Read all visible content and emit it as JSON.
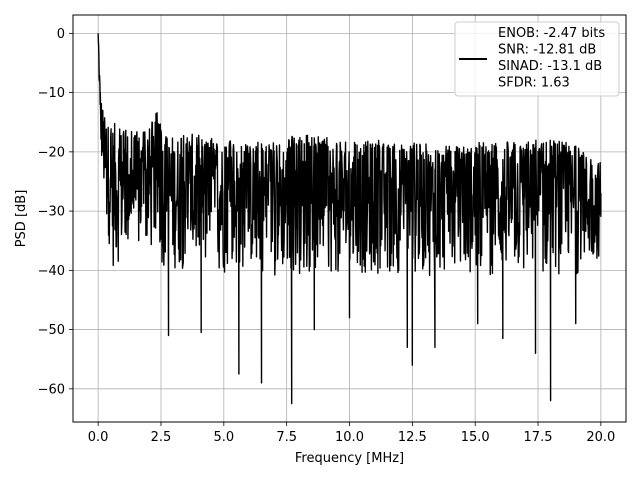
{
  "chart_data": {
    "type": "line",
    "xlabel": "Frequency [MHz]",
    "ylabel": "PSD [dB]",
    "xlim": [
      -1.0,
      21.0
    ],
    "ylim": [
      -65.6,
      3.1
    ],
    "x_ticks": [
      0.0,
      2.5,
      5.0,
      7.5,
      10.0,
      12.5,
      15.0,
      17.5,
      20.0
    ],
    "x_tick_labels": [
      "0.0",
      "2.5",
      "5.0",
      "7.5",
      "10.0",
      "12.5",
      "15.0",
      "17.5",
      "20.0"
    ],
    "y_ticks": [
      0,
      -10,
      -20,
      -30,
      -40,
      -50,
      -60
    ],
    "y_tick_labels": [
      "0",
      "−10",
      "−20",
      "−30",
      "−40",
      "−50",
      "−60"
    ],
    "grid": true,
    "legend_position": "top-right",
    "legend_lines": [
      "ENOB: -2.47 bits",
      "SNR: -12.81 dB",
      "SINAD: -13.1 dB",
      "SFDR: 1.63"
    ],
    "line_color": "#000000",
    "series": [
      {
        "values_note": "noisy PSD trace, approx. envelope",
        "x": [
          0.0,
          0.02,
          0.05,
          0.08,
          0.12,
          0.2,
          0.3,
          0.5,
          1.0,
          1.25,
          2.3,
          2.5,
          2.8,
          4.1,
          5.6,
          6.5,
          7.7,
          8.6,
          10.0,
          12.3,
          12.5,
          13.4,
          15.1,
          16.1,
          17.4,
          18.0,
          19.0,
          20.0
        ],
        "y": [
          0.0,
          -2.0,
          -8.0,
          -12.0,
          -16.0,
          -20.0,
          -22.0,
          -24.0,
          -25.5,
          -26.0,
          -27.0,
          -27.0,
          -51.0,
          -50.5,
          -57.5,
          -59.0,
          -62.5,
          -50.0,
          -48.0,
          -53.0,
          -56.0,
          -53.0,
          -49.0,
          -51.5,
          -54.0,
          -62.0,
          -49.0,
          -27.0
        ],
        "upper_envelope_x": [
          0.0,
          0.1,
          0.3,
          0.6,
          1.0,
          1.5,
          2.0,
          2.35,
          2.6,
          3.0,
          4.0,
          5.0,
          6.0,
          7.0,
          8.0,
          9.0,
          10.0,
          11.0,
          12.0,
          13.0,
          14.0,
          15.0,
          16.0,
          17.0,
          18.0,
          19.0,
          20.0
        ],
        "upper_envelope_y": [
          0.0,
          -10.0,
          -15.0,
          -15.0,
          -16.0,
          -16.5,
          -16.0,
          -13.0,
          -17.0,
          -17.0,
          -17.0,
          -18.0,
          -18.5,
          -18.0,
          -17.0,
          -17.5,
          -18.5,
          -18.0,
          -18.5,
          -18.5,
          -19.0,
          -18.5,
          -18.0,
          -18.0,
          -17.5,
          -19.0,
          -21.5
        ],
        "lower_envelope_y": [
          0.0,
          -20.0,
          -32.0,
          -40.0,
          -38.0,
          -38.0,
          -38.0,
          -37.0,
          -40.0,
          -40.0,
          -40.0,
          -41.0,
          -40.0,
          -41.0,
          -41.0,
          -41.0,
          -41.0,
          -41.0,
          -41.0,
          -41.0,
          -41.0,
          -41.0,
          -41.0,
          -41.0,
          -41.0,
          -41.0,
          -38.0
        ]
      }
    ]
  }
}
